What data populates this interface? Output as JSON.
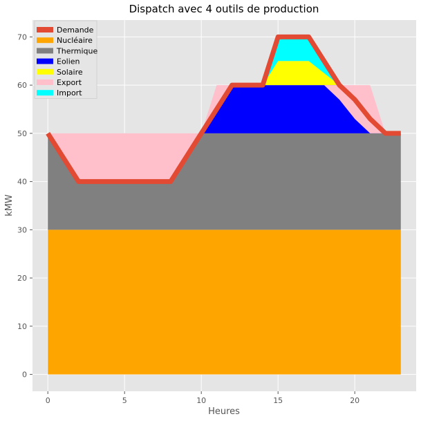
{
  "chart_data": {
    "type": "area",
    "title": "Dispatch avec 4 outils de production",
    "xlabel": "Heures",
    "ylabel": "kMW",
    "xlim": [
      -1,
      24
    ],
    "ylim": [
      -3.5,
      73.5
    ],
    "xticks": [
      0,
      5,
      10,
      15,
      20
    ],
    "yticks": [
      0,
      10,
      20,
      30,
      40,
      50,
      60,
      70
    ],
    "grid": true,
    "legend_position": "top-left",
    "x": [
      0,
      1,
      2,
      3,
      4,
      5,
      6,
      7,
      8,
      9,
      10,
      11,
      12,
      13,
      14,
      15,
      16,
      17,
      18,
      19,
      20,
      21,
      22,
      23
    ],
    "stacked_series": [
      {
        "name": "Nucléaire",
        "color": "#ffa500",
        "values": [
          30,
          30,
          30,
          30,
          30,
          30,
          30,
          30,
          30,
          30,
          30,
          30,
          30,
          30,
          30,
          30,
          30,
          30,
          30,
          30,
          30,
          30,
          30,
          30
        ]
      },
      {
        "name": "Thermique",
        "color": "#808080",
        "values": [
          20,
          20,
          20,
          20,
          20,
          20,
          20,
          20,
          20,
          20,
          20,
          20,
          20,
          20,
          20,
          20,
          20,
          20,
          20,
          20,
          20,
          20,
          20,
          20
        ]
      },
      {
        "name": "Eolien",
        "color": "#0000ff",
        "values": [
          0,
          0,
          0,
          0,
          0,
          0,
          0,
          0,
          0,
          0,
          0,
          5,
          10,
          10,
          10,
          10,
          10,
          10,
          10,
          10,
          7,
          3,
          0,
          0
        ]
      },
      {
        "name": "Solaire",
        "color": "#ffff00",
        "values": [
          0,
          0,
          0,
          0,
          0,
          0,
          0,
          0,
          0,
          0,
          0,
          0,
          0,
          0,
          0,
          5,
          5,
          5,
          2.5,
          0,
          0,
          0,
          0,
          0
        ]
      },
      {
        "name": "Import",
        "color": "#00ffff",
        "values": [
          0,
          0,
          0,
          0,
          0,
          0,
          0,
          0,
          0,
          0,
          0,
          0,
          0,
          0,
          0,
          5,
          5,
          5,
          2.5,
          0,
          0,
          0,
          0,
          0
        ]
      }
    ],
    "export_series": {
      "name": "Export",
      "color": "#ffc0cb",
      "upper": [
        50,
        50,
        50,
        50,
        50,
        50,
        50,
        50,
        50,
        50,
        50,
        60,
        60,
        60,
        60,
        60,
        60,
        60,
        60,
        60,
        60,
        60,
        50,
        50
      ],
      "lower": [
        50,
        45,
        40,
        40,
        40,
        40,
        40,
        40,
        40,
        45,
        50,
        55,
        60,
        60,
        60,
        60,
        60,
        60,
        60,
        57,
        53,
        50,
        50,
        50
      ]
    },
    "line_series": {
      "name": "Demande",
      "color": "#e24a33",
      "values": [
        50,
        45,
        40,
        40,
        40,
        40,
        40,
        40,
        40,
        45,
        50,
        55,
        60,
        60,
        60,
        70,
        70,
        70,
        65,
        60,
        57,
        53,
        50,
        50
      ]
    },
    "legend": [
      "Demande",
      "Nucléaire",
      "Thermique",
      "Eolien",
      "Solaire",
      "Export",
      "Import"
    ]
  }
}
